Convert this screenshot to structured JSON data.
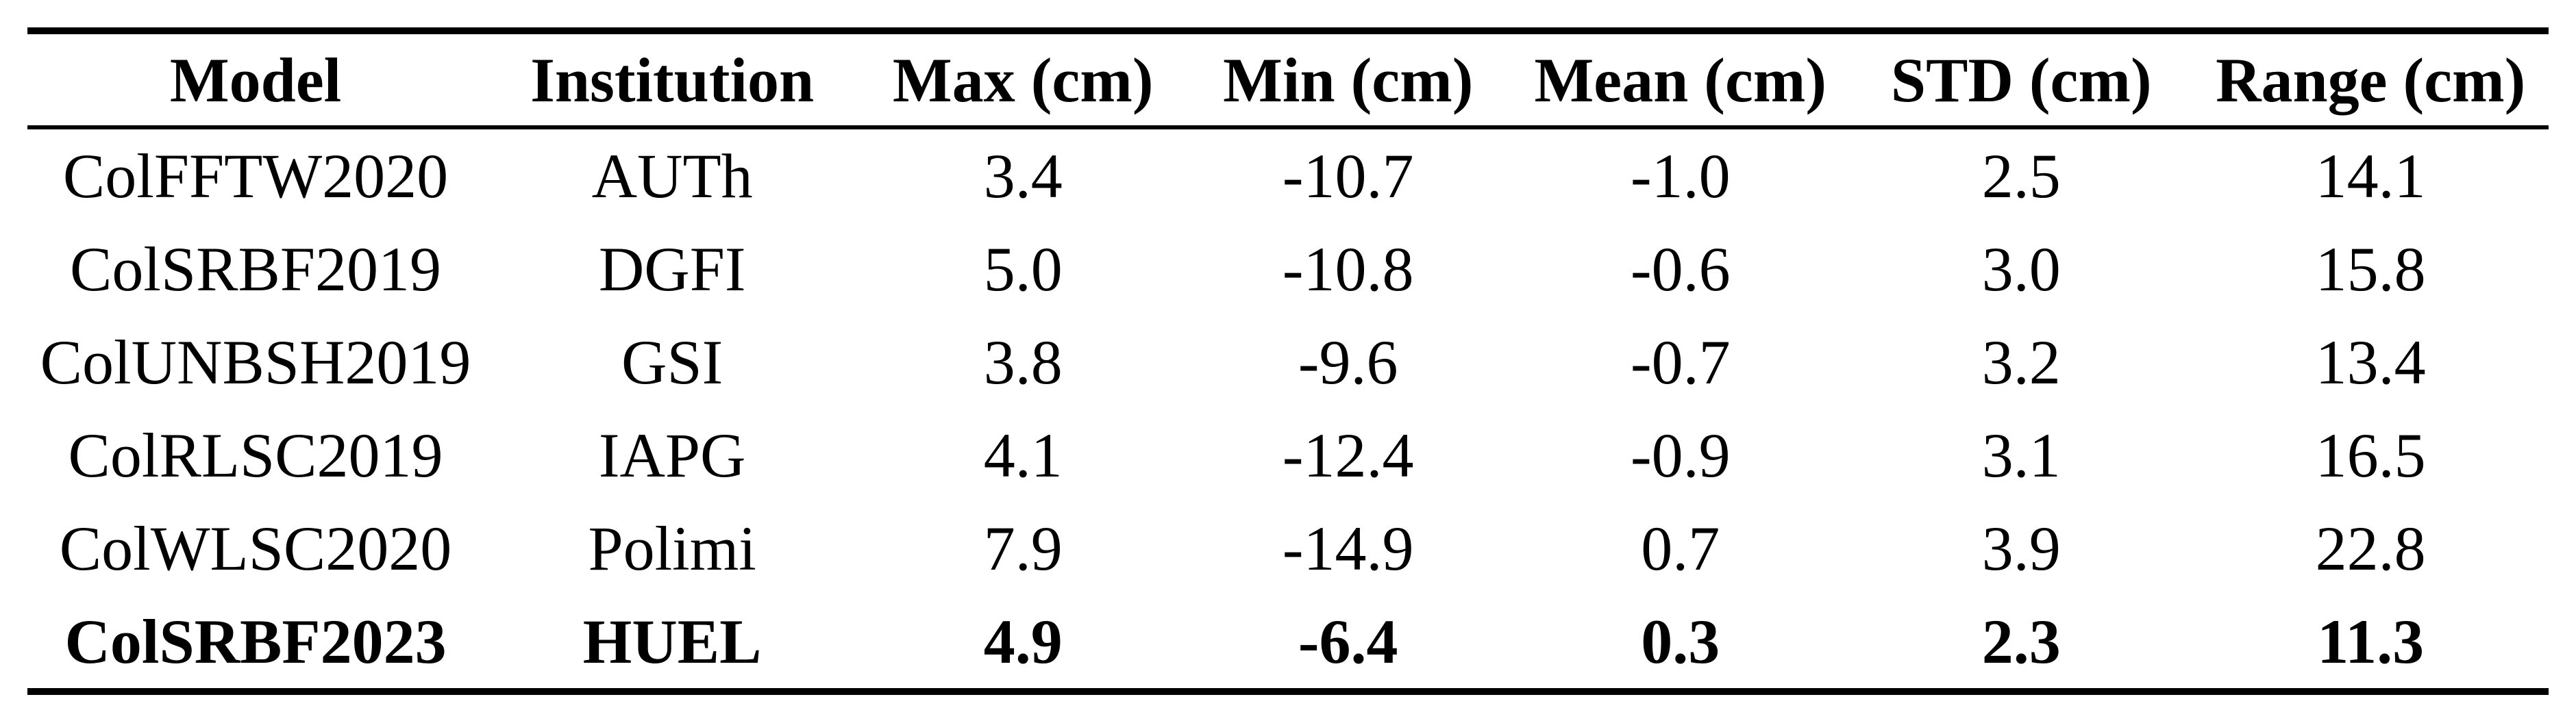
{
  "page": {
    "background_color": "#ffffff",
    "text_color": "#000000",
    "rule_color": "#000000"
  },
  "table": {
    "columns": [
      {
        "key": "model",
        "label": "Model"
      },
      {
        "key": "institution",
        "label": "Institution"
      },
      {
        "key": "max",
        "label": "Max (cm)"
      },
      {
        "key": "min",
        "label": "Min (cm)"
      },
      {
        "key": "mean",
        "label": "Mean (cm)"
      },
      {
        "key": "std",
        "label": "STD (cm)"
      },
      {
        "key": "range",
        "label": "Range (cm)"
      }
    ],
    "rows": [
      {
        "model": "ColFFTW2020",
        "institution": "AUTh",
        "max": "3.4",
        "min": "-10.7",
        "mean": "-1.0",
        "std": "2.5",
        "range": "14.1",
        "emphasis": false
      },
      {
        "model": "ColSRBF2019",
        "institution": "DGFI",
        "max": "5.0",
        "min": "-10.8",
        "mean": "-0.6",
        "std": "3.0",
        "range": "15.8",
        "emphasis": false
      },
      {
        "model": "ColUNBSH2019",
        "institution": "GSI",
        "max": "3.8",
        "min": "-9.6",
        "mean": "-0.7",
        "std": "3.2",
        "range": "13.4",
        "emphasis": false
      },
      {
        "model": "ColRLSC2019",
        "institution": "IAPG",
        "max": "4.1",
        "min": "-12.4",
        "mean": "-0.9",
        "std": "3.1",
        "range": "16.5",
        "emphasis": false
      },
      {
        "model": "ColWLSC2020",
        "institution": "Polimi",
        "max": "7.9",
        "min": "-14.9",
        "mean": "0.7",
        "std": "3.9",
        "range": "22.8",
        "emphasis": false
      },
      {
        "model": "ColSRBF2023",
        "institution": "HUEL",
        "max": "4.9",
        "min": "-6.4",
        "mean": "0.3",
        "std": "2.3",
        "range": "11.3",
        "emphasis": true
      }
    ]
  }
}
